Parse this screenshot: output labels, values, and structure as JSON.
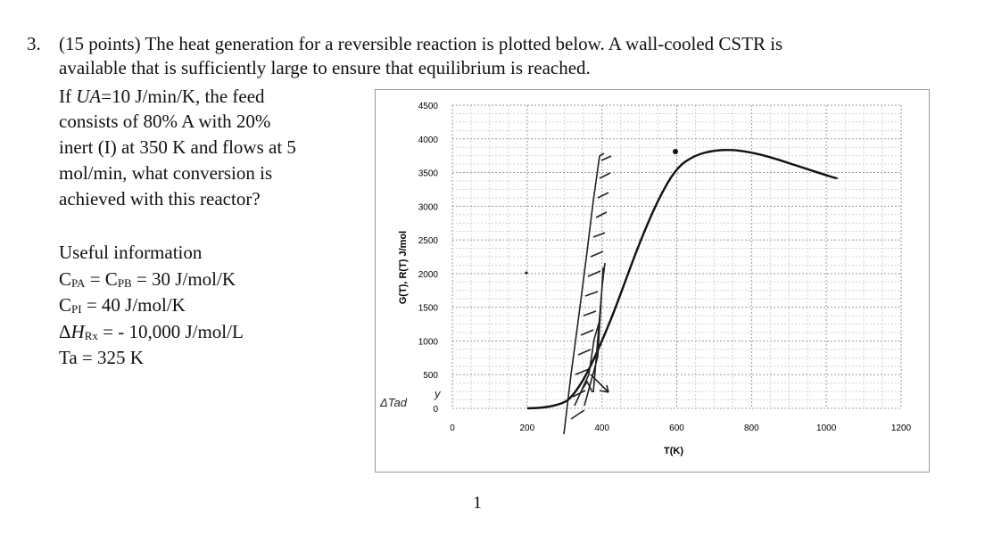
{
  "question": {
    "number": "3.",
    "intro_line1": "(15 points) The heat generation for a reversible reaction is plotted below. A wall-cooled CSTR is",
    "intro_line2": "available that is sufficiently large to ensure that equilibrium is reached.",
    "prompt": {
      "l1_pre": "If ",
      "l1_var": "UA",
      "l1_post": "=10 J/min/K, the feed",
      "l2": "consists of 80% A with 20%",
      "l3": "inert (I) at 350 K and flows at 5",
      "l4": "mol/min, what conversion is",
      "l5": "achieved with this reactor?"
    },
    "useful_info": {
      "heading": "Useful information",
      "cp_a": "C",
      "cp_a_sub": "PA",
      "cp_eq1": " = C",
      "cp_b_sub": "PB",
      "cp_b_val": " = 30 J/mol/K",
      "cp_i": "C",
      "cp_i_sub": "PI",
      "cp_i_val": " = 40 J/mol/K",
      "dh_delta": "Δ",
      "dh_h": "H",
      "dh_sub": "Rx",
      "dh_val": " = - 10,000 J/mol/L",
      "ta": "Ta = 325 K"
    }
  },
  "page_number": "1",
  "handwriting": {
    "left_note": "ΔTad",
    "y_note": "y"
  },
  "chart_data": {
    "type": "line",
    "xlabel": "T(K)",
    "ylabel": "G(T), R(T) J/mol",
    "xlim": [
      0,
      1200
    ],
    "ylim": [
      0,
      4500
    ],
    "xticks": [
      "0",
      "200",
      "400",
      "600",
      "800",
      "1000",
      "1200"
    ],
    "yticks": [
      "0",
      "500",
      "1000",
      "1500",
      "2000",
      "2500",
      "3000",
      "3500",
      "4000",
      "4500"
    ],
    "grid": true,
    "series": [
      {
        "x": [
          200,
          250,
          300,
          320,
          340,
          360,
          380,
          400,
          430,
          460,
          500,
          550,
          600,
          650,
          700,
          750,
          800,
          850,
          900,
          950,
          1000,
          1030
        ],
        "y": [
          0,
          10,
          80,
          180,
          330,
          520,
          750,
          1000,
          1400,
          1850,
          2450,
          3100,
          3580,
          3760,
          3830,
          3840,
          3800,
          3730,
          3640,
          3550,
          3460,
          3410
        ]
      }
    ]
  }
}
